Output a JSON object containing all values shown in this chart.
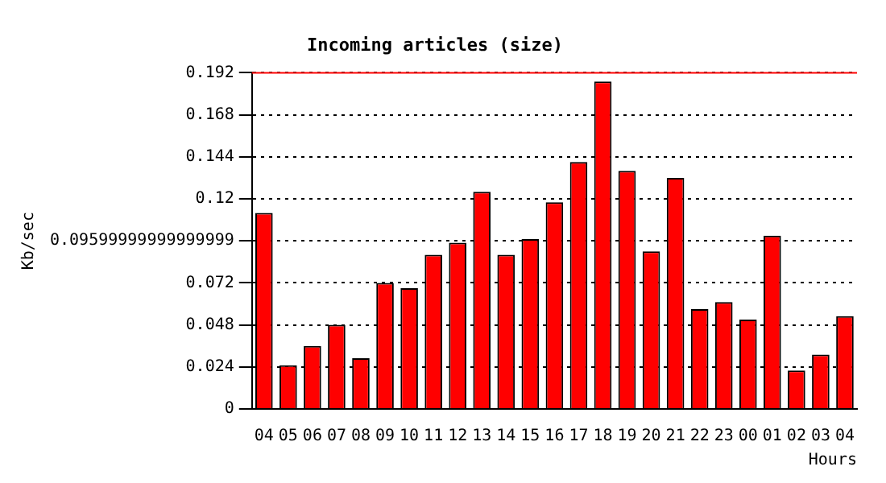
{
  "chart_data": {
    "type": "bar",
    "title": "Incoming articles (size)",
    "ylabel": "Kb/sec",
    "xlabel": "Hours",
    "categories": [
      "04",
      "05",
      "06",
      "07",
      "08",
      "09",
      "10",
      "11",
      "12",
      "13",
      "14",
      "15",
      "16",
      "17",
      "18",
      "19",
      "20",
      "21",
      "22",
      "23",
      "00",
      "01",
      "02",
      "03",
      "04"
    ],
    "series": [
      {
        "color": "#ff0000",
        "values": [
          0.112,
          0.025,
          0.036,
          0.048,
          0.029,
          0.072,
          0.069,
          0.088,
          0.095,
          0.124,
          0.088,
          0.097,
          0.118,
          0.141,
          0.187,
          0.136,
          0.09,
          0.132,
          0.057,
          0.061,
          0.051,
          0.099,
          0.022,
          0.031,
          0.053
        ]
      }
    ],
    "ylim": [
      0,
      0.192
    ],
    "yticks": [
      0,
      0.024,
      0.048,
      0.072,
      {
        "value": 0.096,
        "label": "0.09599999999999999"
      },
      0.12,
      0.144,
      0.168,
      0.192
    ],
    "ref_lines": [
      {
        "axis": "y",
        "value": 0.192,
        "color": "#ff0000"
      }
    ],
    "grid": "y",
    "legend": false
  }
}
